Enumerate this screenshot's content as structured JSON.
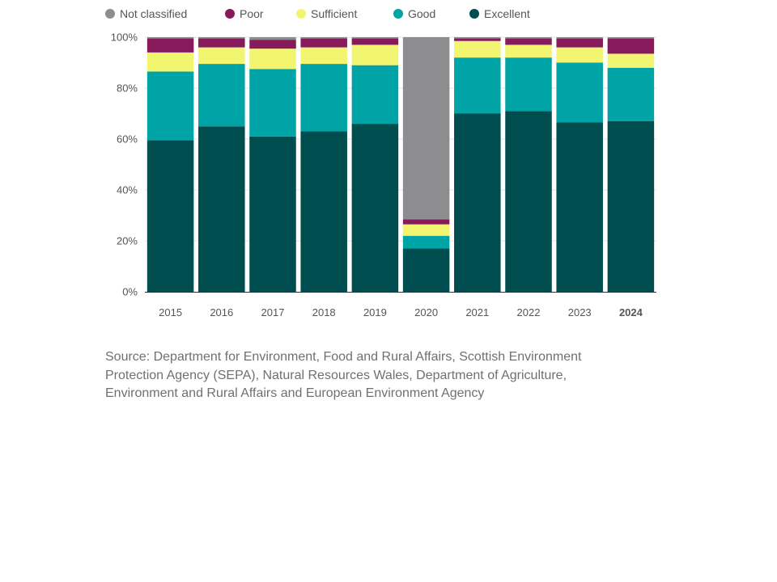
{
  "chart_data": {
    "type": "bar",
    "stacked": true,
    "categories": [
      "2015",
      "2016",
      "2017",
      "2018",
      "2019",
      "2020",
      "2021",
      "2022",
      "2023",
      "2024"
    ],
    "highlight_category": "2024",
    "ylim": [
      0,
      100
    ],
    "yticks": [
      "0%",
      "20%",
      "40%",
      "60%",
      "80%",
      "100%"
    ],
    "ytick_values": [
      0,
      20,
      40,
      60,
      80,
      100
    ],
    "grid": "horizontal",
    "legend_position": "top-left",
    "series": [
      {
        "name": "Excellent",
        "color": "#004d50",
        "values": [
          59.5,
          65.0,
          61.0,
          63.0,
          66.0,
          17.0,
          70.0,
          71.0,
          66.5,
          67.0
        ]
      },
      {
        "name": "Good",
        "color": "#00a3a6",
        "values": [
          27.0,
          24.5,
          26.5,
          26.5,
          23.0,
          5.0,
          22.0,
          21.0,
          23.5,
          21.0
        ]
      },
      {
        "name": "Sufficient",
        "color": "#f2f56f",
        "values": [
          7.5,
          6.5,
          8.0,
          6.5,
          8.0,
          4.5,
          6.5,
          5.0,
          6.0,
          5.5
        ]
      },
      {
        "name": "Poor",
        "color": "#871a5b",
        "values": [
          5.5,
          3.5,
          3.5,
          3.5,
          2.5,
          2.0,
          1.0,
          2.5,
          3.5,
          6.0
        ]
      },
      {
        "name": "Not classified",
        "color": "#8d8d8f",
        "values": [
          0.5,
          0.5,
          1.0,
          0.5,
          0.5,
          71.5,
          0.5,
          0.5,
          0.5,
          0.5
        ]
      }
    ],
    "legend_order": [
      "Not classified",
      "Poor",
      "Sufficient",
      "Good",
      "Excellent"
    ]
  },
  "legend": {
    "items": [
      {
        "label": "Not classified",
        "color": "#8d8d8f"
      },
      {
        "label": "Poor",
        "color": "#871a5b"
      },
      {
        "label": "Sufficient",
        "color": "#f2f56f"
      },
      {
        "label": "Good",
        "color": "#00a3a6"
      },
      {
        "label": "Excellent",
        "color": "#004d50"
      }
    ]
  },
  "source": {
    "text": "Source: Department for Environment, Food and Rural Affairs, Scottish Environment Protection Agency (SEPA), Natural Resources Wales, Department of Agriculture, Environment and Rural Affairs and European Environment Agency"
  },
  "colors": {
    "axis": "#333333",
    "gridline": "#e3e3e3"
  }
}
